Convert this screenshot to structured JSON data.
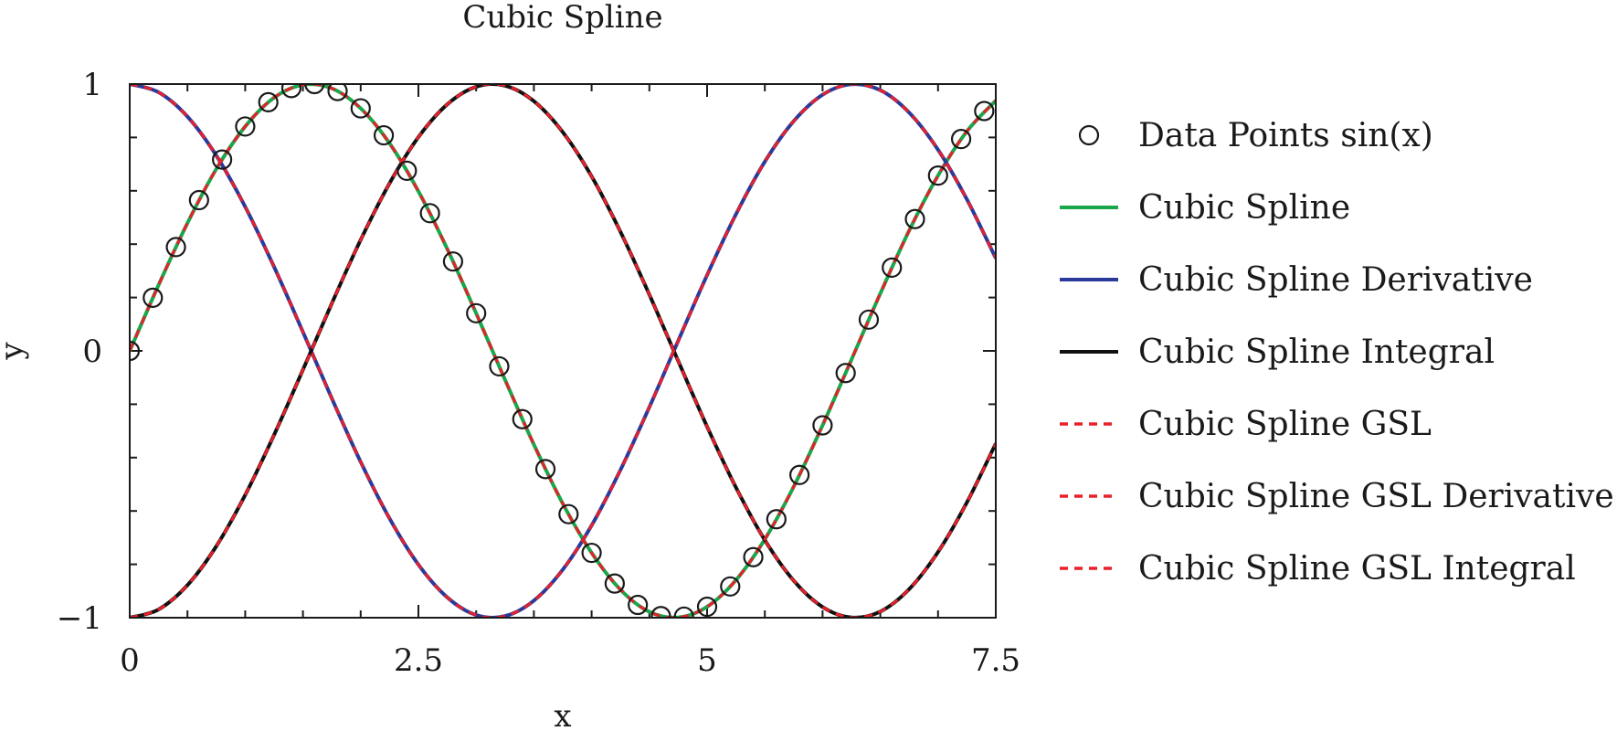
{
  "chart_data": {
    "type": "line",
    "title": "Cubic Spline",
    "xlabel": "x",
    "ylabel": "y",
    "xlim": [
      0,
      7.5
    ],
    "ylim": [
      -1,
      1
    ],
    "xticks": [
      0,
      2.5,
      5,
      7.5
    ],
    "xtick_labels": [
      "0",
      "2.5",
      "5",
      "7.5"
    ],
    "yticks": [
      -1,
      0,
      1
    ],
    "ytick_labels": [
      "−1",
      "0",
      "1"
    ],
    "grid": false,
    "legend_position": "right",
    "series": [
      {
        "name": "Data Points sin(x)",
        "kind": "markers",
        "marker": "circle",
        "color": "#1a1a1a",
        "x": [
          0,
          0.2,
          0.4,
          0.6,
          0.8,
          1.0,
          1.2,
          1.4,
          1.6,
          1.8,
          2.0,
          2.2,
          2.4,
          2.6,
          2.8,
          3.0,
          3.2,
          3.4,
          3.6,
          3.8,
          4.0,
          4.2,
          4.4,
          4.6,
          4.8,
          5.0,
          5.2,
          5.4,
          5.6,
          5.8,
          6.0,
          6.2,
          6.4,
          6.6,
          6.8,
          7.0,
          7.2,
          7.4
        ],
        "y": [
          0,
          0.199,
          0.389,
          0.565,
          0.717,
          0.841,
          0.932,
          0.985,
          1.0,
          0.974,
          0.909,
          0.808,
          0.675,
          0.516,
          0.335,
          0.141,
          -0.058,
          -0.256,
          -0.443,
          -0.612,
          -0.757,
          -0.872,
          -0.952,
          -0.994,
          -0.996,
          -0.959,
          -0.883,
          -0.773,
          -0.631,
          -0.465,
          -0.279,
          -0.083,
          0.117,
          0.312,
          0.494,
          0.657,
          0.794,
          0.899
        ]
      },
      {
        "name": "Cubic Spline",
        "kind": "line",
        "color": "#1aa64b",
        "dash": "solid",
        "x": [
          0,
          0.25,
          0.5,
          0.75,
          1.0,
          1.25,
          1.5,
          1.75,
          2.0,
          2.25,
          2.5,
          2.75,
          3.0,
          3.25,
          3.5,
          3.75,
          4.0,
          4.25,
          4.5,
          4.75,
          5.0,
          5.25,
          5.5,
          5.75,
          6.0,
          6.25,
          6.5,
          6.75,
          7.0,
          7.25,
          7.5
        ],
        "y": [
          0,
          0.247,
          0.479,
          0.682,
          0.841,
          0.949,
          0.997,
          0.984,
          0.909,
          0.778,
          0.598,
          0.382,
          0.141,
          -0.108,
          -0.351,
          -0.572,
          -0.757,
          -0.895,
          -0.978,
          -0.999,
          -0.959,
          -0.859,
          -0.706,
          -0.509,
          -0.279,
          -0.033,
          0.215,
          0.451,
          0.657,
          0.823,
          0.938
        ]
      },
      {
        "name": "Cubic Spline Derivative",
        "kind": "line",
        "color": "#2b3a9a",
        "dash": "solid",
        "x": [
          0,
          0.25,
          0.5,
          0.75,
          1.0,
          1.25,
          1.5,
          1.75,
          2.0,
          2.25,
          2.5,
          2.75,
          3.0,
          3.25,
          3.5,
          3.75,
          4.0,
          4.25,
          4.5,
          4.75,
          5.0,
          5.25,
          5.5,
          5.75,
          6.0,
          6.25,
          6.5,
          6.75,
          7.0,
          7.25,
          7.5
        ],
        "y": [
          1.0,
          0.969,
          0.878,
          0.732,
          0.54,
          0.315,
          0.071,
          -0.178,
          -0.416,
          -0.628,
          -0.801,
          -0.924,
          -0.99,
          -0.994,
          -0.936,
          -0.82,
          -0.654,
          -0.446,
          -0.211,
          0.038,
          0.284,
          0.512,
          0.709,
          0.861,
          0.96,
          0.999,
          0.977,
          0.893,
          0.754,
          0.568,
          0.347
        ]
      },
      {
        "name": "Cubic Spline Integral",
        "kind": "line",
        "color": "#111111",
        "dash": "solid",
        "x": [
          0,
          0.25,
          0.5,
          0.75,
          1.0,
          1.25,
          1.5,
          1.75,
          2.0,
          2.25,
          2.5,
          2.75,
          3.0,
          3.25,
          3.5,
          3.75,
          4.0,
          4.25,
          4.5,
          4.75,
          5.0,
          5.25,
          5.5,
          5.75,
          6.0,
          6.25,
          6.5,
          6.75,
          7.0,
          7.25,
          7.5
        ],
        "y": [
          -1.0,
          -0.969,
          -0.878,
          -0.732,
          -0.54,
          -0.315,
          -0.071,
          0.178,
          0.416,
          0.628,
          0.801,
          0.924,
          0.99,
          0.994,
          0.936,
          0.82,
          0.654,
          0.446,
          0.211,
          -0.038,
          -0.284,
          -0.512,
          -0.709,
          -0.861,
          -0.96,
          -0.999,
          -0.977,
          -0.893,
          -0.754,
          -0.568,
          -0.347
        ]
      },
      {
        "name": "Cubic Spline GSL",
        "kind": "line",
        "color": "#e8202a",
        "dash": "dashed",
        "x": [
          0,
          0.25,
          0.5,
          0.75,
          1.0,
          1.25,
          1.5,
          1.75,
          2.0,
          2.25,
          2.5,
          2.75,
          3.0,
          3.25,
          3.5,
          3.75,
          4.0,
          4.25,
          4.5,
          4.75,
          5.0,
          5.25,
          5.5,
          5.75,
          6.0,
          6.25,
          6.5,
          6.75,
          7.0,
          7.25,
          7.5
        ],
        "y": [
          0,
          0.247,
          0.479,
          0.682,
          0.841,
          0.949,
          0.997,
          0.984,
          0.909,
          0.778,
          0.598,
          0.382,
          0.141,
          -0.108,
          -0.351,
          -0.572,
          -0.757,
          -0.895,
          -0.978,
          -0.999,
          -0.959,
          -0.859,
          -0.706,
          -0.509,
          -0.279,
          -0.033,
          0.215,
          0.451,
          0.657,
          0.823,
          0.938
        ]
      },
      {
        "name": "Cubic Spline GSL Derivative",
        "kind": "line",
        "color": "#e8202a",
        "dash": "dashed",
        "x": [
          0,
          0.25,
          0.5,
          0.75,
          1.0,
          1.25,
          1.5,
          1.75,
          2.0,
          2.25,
          2.5,
          2.75,
          3.0,
          3.25,
          3.5,
          3.75,
          4.0,
          4.25,
          4.5,
          4.75,
          5.0,
          5.25,
          5.5,
          5.75,
          6.0,
          6.25,
          6.5,
          6.75,
          7.0,
          7.25,
          7.5
        ],
        "y": [
          1.0,
          0.969,
          0.878,
          0.732,
          0.54,
          0.315,
          0.071,
          -0.178,
          -0.416,
          -0.628,
          -0.801,
          -0.924,
          -0.99,
          -0.994,
          -0.936,
          -0.82,
          -0.654,
          -0.446,
          -0.211,
          0.038,
          0.284,
          0.512,
          0.709,
          0.861,
          0.96,
          0.999,
          0.977,
          0.893,
          0.754,
          0.568,
          0.347
        ]
      },
      {
        "name": "Cubic Spline GSL Integral",
        "kind": "line",
        "color": "#e8202a",
        "dash": "dashed",
        "x": [
          0,
          0.25,
          0.5,
          0.75,
          1.0,
          1.25,
          1.5,
          1.75,
          2.0,
          2.25,
          2.5,
          2.75,
          3.0,
          3.25,
          3.5,
          3.75,
          4.0,
          4.25,
          4.5,
          4.75,
          5.0,
          5.25,
          5.5,
          5.75,
          6.0,
          6.25,
          6.5,
          6.75,
          7.0,
          7.25,
          7.5
        ],
        "y": [
          -1.0,
          -0.969,
          -0.878,
          -0.732,
          -0.54,
          -0.315,
          -0.071,
          0.178,
          0.416,
          0.628,
          0.801,
          0.924,
          0.99,
          0.994,
          0.936,
          0.82,
          0.654,
          0.446,
          0.211,
          -0.038,
          -0.284,
          -0.512,
          -0.709,
          -0.861,
          -0.96,
          -0.999,
          -0.977,
          -0.893,
          -0.754,
          -0.568,
          -0.347
        ]
      }
    ]
  }
}
